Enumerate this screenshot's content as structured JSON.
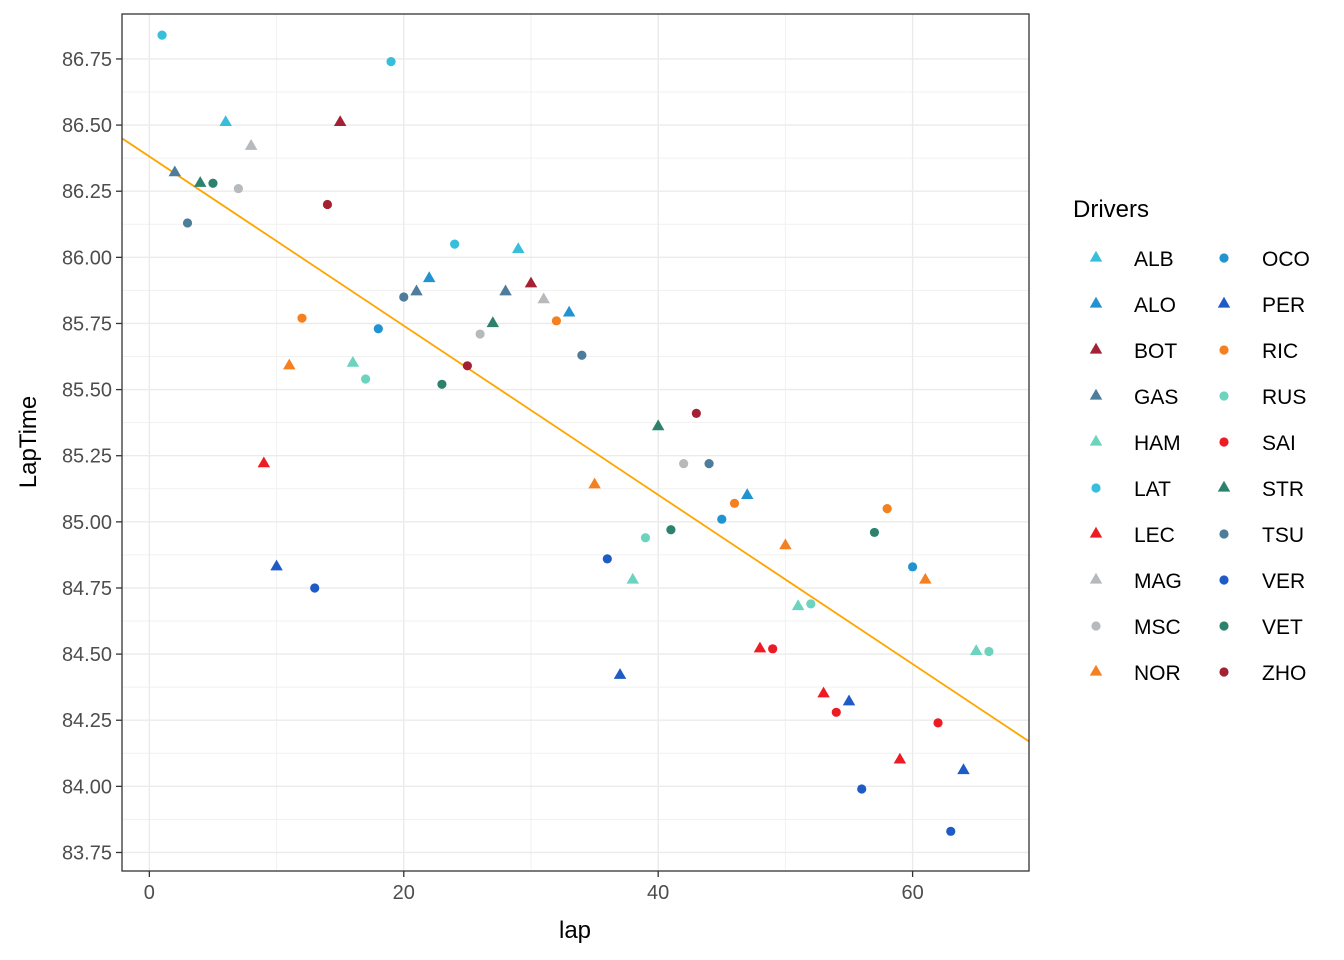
{
  "chart_data": {
    "type": "scatter",
    "xlabel": "lap",
    "ylabel": "LapTime",
    "xlim": [
      -2.15,
      69.15
    ],
    "ylim": [
      83.68,
      86.92
    ],
    "x_ticks": [
      0,
      20,
      40,
      60
    ],
    "x_tick_labels": [
      "0",
      "20",
      "40",
      "60"
    ],
    "y_ticks": [
      83.75,
      84.0,
      84.25,
      84.5,
      84.75,
      85.0,
      85.25,
      85.5,
      85.75,
      86.0,
      86.25,
      86.5,
      86.75
    ],
    "y_tick_labels": [
      "83.75",
      "84.00",
      "84.25",
      "84.50",
      "84.75",
      "85.00",
      "85.25",
      "85.50",
      "85.75",
      "86.00",
      "86.25",
      "86.50",
      "86.75"
    ],
    "grid": true,
    "legend": {
      "title": "Drivers",
      "position": "right",
      "columns": 2,
      "entries": [
        "ALB",
        "ALO",
        "BOT",
        "GAS",
        "HAM",
        "LAT",
        "LEC",
        "MAG",
        "MSC",
        "NOR",
        "OCO",
        "PER",
        "RIC",
        "RUS",
        "SAI",
        "STR",
        "TSU",
        "VER",
        "VET",
        "ZHO"
      ]
    },
    "trend_line": {
      "color": "#FFA500",
      "x": [
        -2.15,
        69.15
      ],
      "y": [
        86.45,
        84.17
      ]
    },
    "series": [
      {
        "name": "ALB",
        "color": "#37BEDD",
        "shape": "triangle",
        "points": [
          [
            6,
            86.51
          ],
          [
            29,
            86.03
          ]
        ]
      },
      {
        "name": "ALO",
        "color": "#2293D1",
        "shape": "triangle",
        "points": [
          [
            22,
            85.92
          ],
          [
            33,
            85.79
          ],
          [
            47,
            85.1
          ]
        ]
      },
      {
        "name": "BOT",
        "color": "#A42134",
        "shape": "triangle",
        "points": [
          [
            15,
            86.51
          ],
          [
            30,
            85.9
          ]
        ]
      },
      {
        "name": "GAS",
        "color": "#4E7C9B",
        "shape": "triangle",
        "points": [
          [
            2,
            86.32
          ],
          [
            21,
            85.87
          ],
          [
            28,
            85.87
          ]
        ]
      },
      {
        "name": "HAM",
        "color": "#6CD3BF",
        "shape": "triangle",
        "points": [
          [
            16,
            85.6
          ],
          [
            38,
            84.78
          ],
          [
            51,
            84.68
          ],
          [
            65,
            84.51
          ]
        ]
      },
      {
        "name": "LAT",
        "color": "#37BEDD",
        "shape": "circle",
        "points": [
          [
            1,
            86.84
          ],
          [
            19,
            86.74
          ],
          [
            24,
            86.05
          ]
        ]
      },
      {
        "name": "LEC",
        "color": "#ED1C24",
        "shape": "triangle",
        "points": [
          [
            9,
            85.22
          ],
          [
            48,
            84.52
          ],
          [
            53,
            84.35
          ],
          [
            59,
            84.1
          ]
        ]
      },
      {
        "name": "MAG",
        "color": "#B6BABD",
        "shape": "triangle",
        "points": [
          [
            8,
            86.42
          ],
          [
            31,
            85.84
          ]
        ]
      },
      {
        "name": "MSC",
        "color": "#B6BABD",
        "shape": "circle",
        "points": [
          [
            7,
            86.26
          ],
          [
            26,
            85.71
          ],
          [
            42,
            85.22
          ]
        ]
      },
      {
        "name": "NOR",
        "color": "#F58020",
        "shape": "triangle",
        "points": [
          [
            11,
            85.59
          ],
          [
            35,
            85.14
          ],
          [
            50,
            84.91
          ],
          [
            61,
            84.78
          ]
        ]
      },
      {
        "name": "OCO",
        "color": "#2293D1",
        "shape": "circle",
        "points": [
          [
            18,
            85.73
          ],
          [
            45,
            85.01
          ],
          [
            60,
            84.83
          ]
        ]
      },
      {
        "name": "PER",
        "color": "#1E5BC6",
        "shape": "triangle",
        "points": [
          [
            10,
            84.83
          ],
          [
            37,
            84.42
          ],
          [
            55,
            84.32
          ],
          [
            64,
            84.06
          ]
        ]
      },
      {
        "name": "RIC",
        "color": "#F58020",
        "shape": "circle",
        "points": [
          [
            12,
            85.77
          ],
          [
            32,
            85.76
          ],
          [
            46,
            85.07
          ],
          [
            58,
            85.05
          ]
        ]
      },
      {
        "name": "RUS",
        "color": "#6CD3BF",
        "shape": "circle",
        "points": [
          [
            17,
            85.54
          ],
          [
            39,
            84.94
          ],
          [
            52,
            84.69
          ],
          [
            66,
            84.51
          ]
        ]
      },
      {
        "name": "SAI",
        "color": "#ED1C24",
        "shape": "circle",
        "points": [
          [
            49,
            84.52
          ],
          [
            54,
            84.28
          ],
          [
            62,
            84.24
          ]
        ]
      },
      {
        "name": "STR",
        "color": "#2D826D",
        "shape": "triangle",
        "points": [
          [
            4,
            86.28
          ],
          [
            27,
            85.75
          ],
          [
            40,
            85.36
          ]
        ]
      },
      {
        "name": "TSU",
        "color": "#4E7C9B",
        "shape": "circle",
        "points": [
          [
            3,
            86.13
          ],
          [
            20,
            85.85
          ],
          [
            34,
            85.63
          ],
          [
            44,
            85.22
          ]
        ]
      },
      {
        "name": "VER",
        "color": "#1E5BC6",
        "shape": "circle",
        "points": [
          [
            13,
            84.75
          ],
          [
            36,
            84.86
          ],
          [
            56,
            83.99
          ],
          [
            63,
            83.83
          ]
        ]
      },
      {
        "name": "VET",
        "color": "#2D826D",
        "shape": "circle",
        "points": [
          [
            5,
            86.28
          ],
          [
            23,
            85.52
          ],
          [
            41,
            84.97
          ],
          [
            57,
            84.96
          ]
        ]
      },
      {
        "name": "ZHO",
        "color": "#A42134",
        "shape": "circle",
        "points": [
          [
            14,
            86.2
          ],
          [
            25,
            85.59
          ],
          [
            43,
            85.41
          ]
        ]
      }
    ]
  }
}
